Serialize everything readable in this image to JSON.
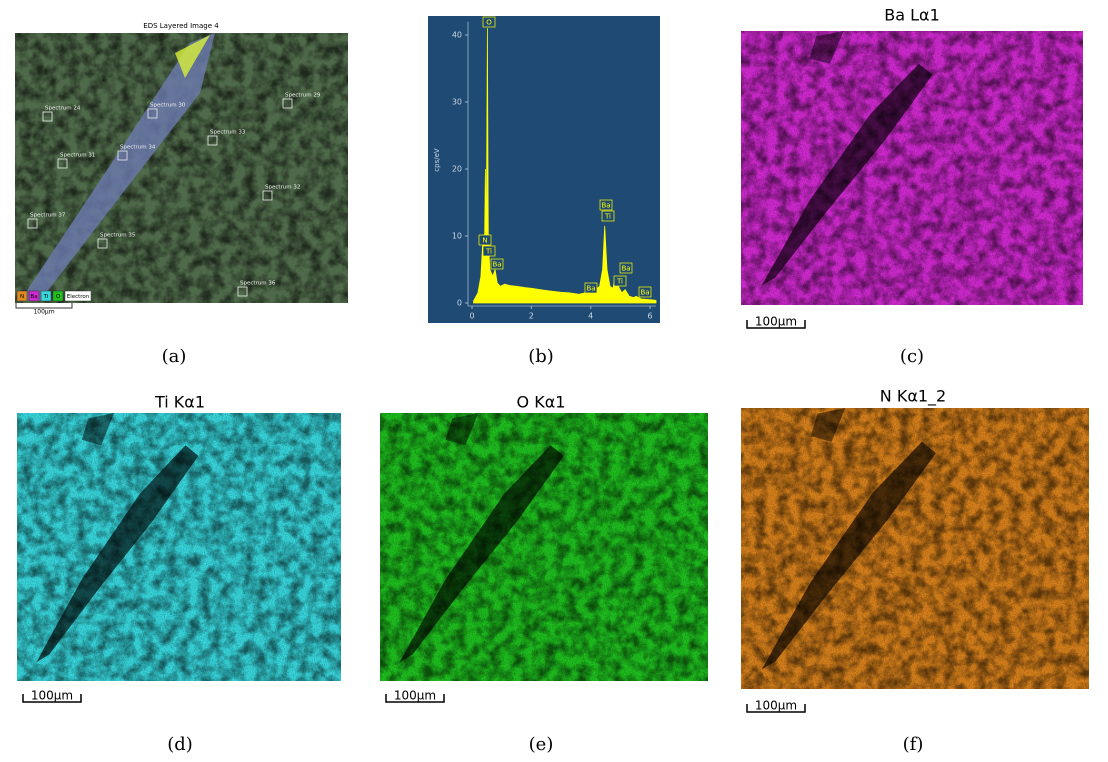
{
  "figure": {
    "panels": [
      {
        "caption": "(a)",
        "title": "EDS Layered Image 4",
        "scale_bar": "100µm",
        "legend": [
          "N",
          "Ba",
          "Ti",
          "O",
          "Electron"
        ],
        "spectrum_labels": [
          "Spectrum 24",
          "Spectrum 31",
          "Spectrum 34",
          "Spectrum 37",
          "Spectrum 35",
          "Spectrum 36",
          "Spectrum 32",
          "Spectrum 33",
          "Spectrum 29",
          "Spectrum 30"
        ]
      },
      {
        "caption": "(b)",
        "chart": {
          "type": "line",
          "ylabel": "cps/eV",
          "color": "#ffff00",
          "xlim": [
            0,
            6.2
          ],
          "ylim": [
            0,
            42
          ],
          "xticks": [
            0,
            2,
            4,
            6
          ],
          "yticks": [
            0,
            10,
            20,
            30,
            40
          ],
          "x": [
            0.05,
            0.2,
            0.3,
            0.36,
            0.39,
            0.42,
            0.45,
            0.48,
            0.52,
            0.55,
            0.6,
            0.7,
            0.78,
            0.85,
            0.95,
            1.1,
            1.3,
            1.5,
            1.8,
            2.0,
            2.3,
            2.6,
            3.0,
            3.3,
            3.6,
            3.9,
            4.1,
            4.3,
            4.4,
            4.47,
            4.55,
            4.65,
            4.75,
            4.83,
            4.93,
            5.05,
            5.16,
            5.3,
            5.45,
            5.53,
            5.7,
            6.0,
            6.2
          ],
          "values": [
            0.3,
            1.5,
            4,
            9,
            10,
            8,
            20,
            7,
            41,
            10,
            5,
            4,
            5,
            3,
            2.5,
            2.8,
            2.6,
            2.5,
            2.3,
            2.2,
            2,
            1.8,
            1.6,
            1.5,
            1.3,
            1.6,
            1.8,
            2.5,
            5,
            11.5,
            5,
            2.5,
            2.2,
            4,
            2.5,
            1.5,
            2,
            1,
            0.8,
            1,
            0.6,
            0.5,
            0.4
          ],
          "peak_labels": [
            "O",
            "N",
            "Ti",
            "Ba",
            "Ba",
            "Ba",
            "Ti",
            "Ba",
            "Ti",
            "Ba"
          ]
        }
      },
      {
        "caption": "(c)",
        "title": "Ba Lα1",
        "scale_bar": "100µm",
        "color": "#d22ad2"
      },
      {
        "caption": "(d)",
        "title": "Ti Kα1",
        "scale_bar": "100µm",
        "color": "#38d8de"
      },
      {
        "caption": "(e)",
        "title": "O Kα1",
        "scale_bar": "100µm",
        "color": "#1fc11f"
      },
      {
        "caption": "(f)",
        "title": "N Kα1_2",
        "scale_bar": "100µm",
        "color": "#d9821c"
      }
    ]
  }
}
